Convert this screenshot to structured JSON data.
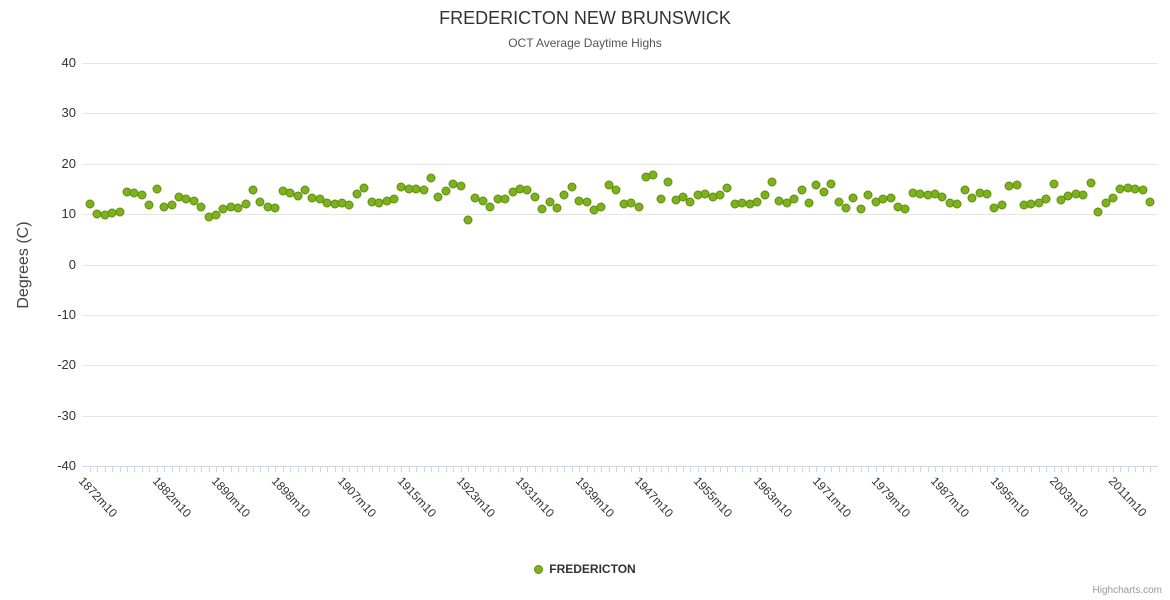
{
  "chart_data": {
    "type": "scatter",
    "title": "FREDERICTON NEW BRUNSWICK",
    "subtitle": "OCT Average Daytime Highs",
    "ylabel": "Degrees (C)",
    "ylim": [
      -40,
      40
    ],
    "y_ticks": [
      40,
      30,
      20,
      10,
      0,
      -10,
      -20,
      -30,
      -40
    ],
    "grid": true,
    "legend_position": "bottom-center",
    "x_tick_labels": [
      "1872m10",
      "1882m10",
      "1890m10",
      "1898m10",
      "1907m10",
      "1915m10",
      "1923m10",
      "1931m10",
      "1939m10",
      "1947m10",
      "1955m10",
      "1963m10",
      "1971m10",
      "1979m10",
      "1987m10",
      "1995m10",
      "2003m10",
      "2011m10"
    ],
    "x_tick_indices": [
      0,
      10,
      18,
      26,
      35,
      43,
      51,
      59,
      67,
      75,
      83,
      91,
      99,
      107,
      115,
      123,
      131,
      139
    ],
    "x_start_year": 1872,
    "x_suffix": "m10",
    "series": [
      {
        "name": "FREDERICTON",
        "color": "#7cb31c",
        "marker_border_color": "#618c13",
        "values": [
          12.0,
          10.0,
          9.9,
          10.3,
          10.4,
          14.3,
          14.1,
          13.8,
          11.8,
          15.0,
          11.4,
          11.8,
          13.4,
          13.1,
          12.7,
          11.4,
          9.4,
          9.9,
          11.0,
          11.4,
          11.2,
          12.0,
          14.7,
          12.4,
          11.5,
          11.2,
          14.6,
          14.2,
          13.6,
          14.8,
          13.3,
          13.1,
          12.2,
          12.0,
          12.3,
          11.8,
          14.0,
          15.2,
          12.4,
          12.3,
          12.6,
          13.0,
          15.4,
          14.9,
          14.9,
          14.7,
          17.2,
          13.4,
          14.6,
          16.0,
          15.5,
          8.8,
          13.2,
          12.7,
          11.4,
          13.1,
          13.0,
          14.4,
          15.0,
          14.7,
          13.4,
          11.0,
          12.4,
          11.2,
          13.8,
          15.4,
          12.7,
          12.4,
          10.8,
          11.5,
          15.7,
          14.8,
          12.0,
          12.2,
          11.5,
          17.4,
          17.7,
          13.1,
          16.4,
          12.8,
          13.4,
          12.5,
          13.8,
          14.0,
          13.4,
          13.8,
          15.1,
          12.0,
          12.2,
          12.0,
          12.5,
          13.8,
          16.4,
          12.7,
          12.2,
          13.0,
          14.8,
          12.2,
          15.8,
          14.4,
          16.0,
          12.4,
          11.2,
          13.2,
          11.0,
          13.8,
          12.5,
          13.0,
          13.2,
          11.5,
          11.0,
          14.2,
          14.0,
          13.8,
          14.0,
          13.4,
          12.2,
          12.0,
          14.8,
          13.2,
          14.2,
          14.0,
          11.2,
          11.8,
          15.5,
          15.8,
          11.8,
          12.0,
          12.2,
          13.0,
          16.0,
          12.8,
          13.5,
          14.0,
          13.8,
          16.2,
          10.5,
          12.2,
          13.2,
          15.0,
          15.2,
          15.0,
          14.8,
          12.5
        ]
      }
    ],
    "credit": "Highcharts.com"
  }
}
